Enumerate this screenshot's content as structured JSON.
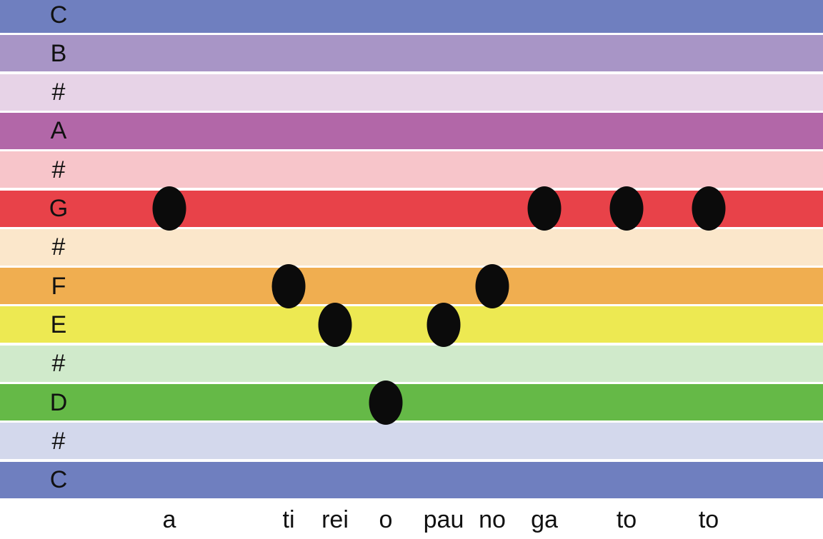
{
  "staff": {
    "rows": [
      {
        "label": "C",
        "color": "#6F7FBF"
      },
      {
        "label": "B",
        "color": "#A895C6"
      },
      {
        "label": "#",
        "color": "#E7D3E7"
      },
      {
        "label": "A",
        "color": "#B267A8"
      },
      {
        "label": "#",
        "color": "#F7C5CA"
      },
      {
        "label": "G",
        "color": "#E84249"
      },
      {
        "label": "#",
        "color": "#FBE7CB"
      },
      {
        "label": "F",
        "color": "#F0AE50"
      },
      {
        "label": "E",
        "color": "#EDE952"
      },
      {
        "label": "#",
        "color": "#D0EACB"
      },
      {
        "label": "D",
        "color": "#65B947"
      },
      {
        "label": "#",
        "color": "#D3D8EC"
      },
      {
        "label": "C",
        "color": "#6F7FBF"
      }
    ]
  },
  "melody": [
    {
      "syllable": "a",
      "note": "G"
    },
    {
      "syllable": "ti",
      "note": "F"
    },
    {
      "syllable": "rei",
      "note": "E"
    },
    {
      "syllable": "o",
      "note": "D"
    },
    {
      "syllable": "pau",
      "note": "E"
    },
    {
      "syllable": "no",
      "note": "F"
    },
    {
      "syllable": "ga",
      "note": "G"
    },
    {
      "syllable": "to",
      "note": "G"
    },
    {
      "syllable": "to",
      "note": "G"
    }
  ]
}
